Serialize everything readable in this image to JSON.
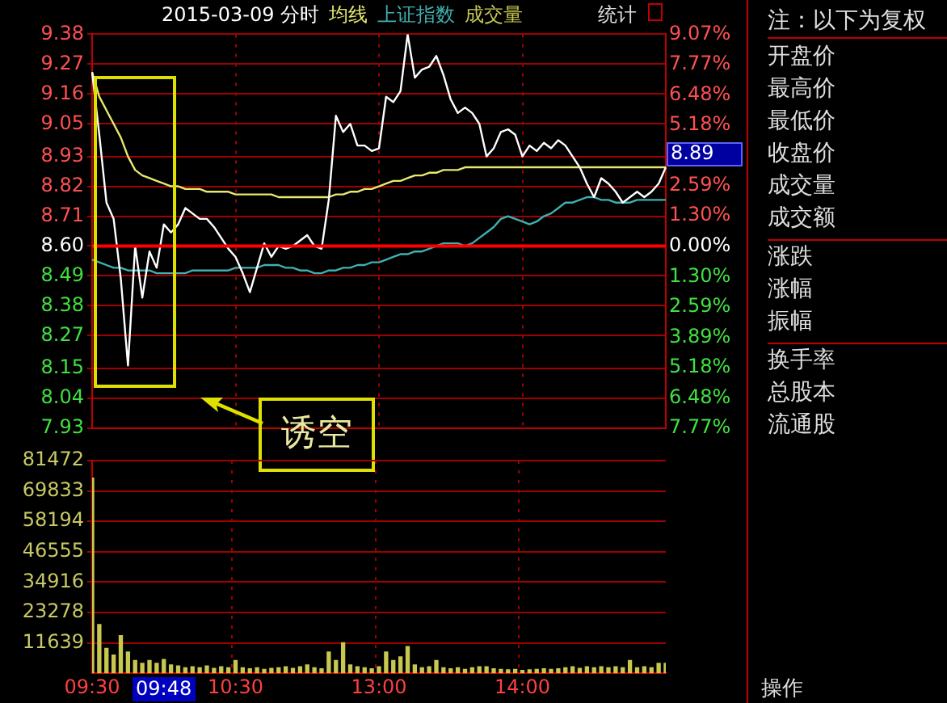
{
  "chart_data": [
    {
      "type": "line",
      "title": "2015-03-09 分时",
      "legend": "top left",
      "grid": true,
      "tick_labels": "y",
      "categories": [
        null,
        null,
        null,
        null,
        null,
        null,
        null,
        null,
        null,
        null,
        null,
        null,
        null,
        null,
        null,
        null,
        null,
        null,
        null,
        null,
        null,
        null,
        null,
        null,
        null,
        null,
        null,
        null,
        null,
        null,
        null,
        null,
        null,
        null,
        null,
        null,
        null,
        null,
        null,
        null,
        null,
        null,
        null,
        null,
        null,
        null,
        null,
        null,
        null,
        null,
        null,
        null,
        null,
        null,
        null,
        null,
        null,
        null,
        null,
        null,
        null,
        null,
        null,
        null,
        null,
        null,
        null,
        null,
        null,
        null,
        null,
        null,
        null,
        null,
        null,
        null,
        null,
        null,
        null,
        null,
        null
      ],
      "ylim": [
        7.93,
        9.38
      ],
      "yticks": [
        7.93,
        8.04,
        8.15,
        8.27,
        8.38,
        8.49,
        {
          "value": 8.6,
          "label": "8.60"
        },
        8.71,
        8.82,
        8.93,
        9.05,
        9.16,
        9.27,
        9.38
      ],
      "y2lim": [
        -7.77,
        9.07
      ],
      "y2ticks": [
        {
          "value": -7.77,
          "label": "7.77%"
        },
        {
          "value": -6.48,
          "label": "6.48%"
        },
        {
          "value": -5.18,
          "label": "5.18%"
        },
        {
          "value": -3.89,
          "label": "3.89%"
        },
        {
          "value": -2.59,
          "label": "2.59%"
        },
        {
          "value": -1.3,
          "label": "1.30%"
        },
        {
          "value": 0,
          "label": "0.00%"
        },
        {
          "value": 1.3,
          "label": "1.30%"
        },
        {
          "value": 2.59,
          "label": "2.59%"
        },
        {
          "value": 3.89,
          "label": null
        },
        {
          "value": 5.18,
          "label": "5.18%"
        },
        {
          "value": 6.48,
          "label": "6.48%"
        },
        {
          "value": 7.77,
          "label": "7.77%"
        },
        {
          "value": 9.07,
          "label": "9.07%"
        }
      ],
      "ref_lines": [
        {
          "axis": "y",
          "value": 8.6,
          "color": "#ff0000"
        }
      ],
      "annotations": [
        "统计",
        "诱空",
        "8.89"
      ],
      "series": [
        {
          "color": "#ffffff",
          "values": [
            9.24,
            9.01,
            8.76,
            8.7,
            8.48,
            8.16,
            8.6,
            8.41,
            8.58,
            8.52,
            8.68,
            8.65,
            8.68,
            8.74,
            8.72,
            8.7,
            8.7,
            8.67,
            8.63,
            8.59,
            8.56,
            8.5,
            8.43,
            8.52,
            8.61,
            8.56,
            8.6,
            8.59,
            8.6,
            8.62,
            8.64,
            8.6,
            8.59,
            8.77,
            9.08,
            9.02,
            9.05,
            8.97,
            8.97,
            8.95,
            8.96,
            9.15,
            9.13,
            9.17,
            9.38,
            9.22,
            9.25,
            9.26,
            9.3,
            9.23,
            9.14,
            9.09,
            9.11,
            9.09,
            9.05,
            8.93,
            8.96,
            9.02,
            9.03,
            9.01,
            8.93,
            8.97,
            8.95,
            8.98,
            8.96,
            8.99,
            8.97,
            8.93,
            8.89,
            8.83,
            8.78,
            8.85,
            8.83,
            8.8,
            8.76,
            8.78,
            8.8,
            8.78,
            8.8,
            8.83,
            8.89
          ]
        },
        {
          "name": "均线",
          "color": "#e8e870",
          "values": [
            9.24,
            9.15,
            9.1,
            9.05,
            9.0,
            8.93,
            8.88,
            8.86,
            8.85,
            8.84,
            8.83,
            8.82,
            8.82,
            8.81,
            8.81,
            8.81,
            8.8,
            8.8,
            8.8,
            8.8,
            8.79,
            8.79,
            8.79,
            8.79,
            8.79,
            8.79,
            8.78,
            8.78,
            8.78,
            8.78,
            8.78,
            8.78,
            8.78,
            8.78,
            8.79,
            8.79,
            8.8,
            8.8,
            8.81,
            8.81,
            8.82,
            8.83,
            8.84,
            8.84,
            8.85,
            8.86,
            8.86,
            8.87,
            8.87,
            8.88,
            8.88,
            8.88,
            8.89,
            8.89,
            8.89,
            8.89,
            8.89,
            8.89,
            8.89,
            8.89,
            8.89,
            8.89,
            8.89,
            8.89,
            8.89,
            8.89,
            8.89,
            8.89,
            8.89,
            8.89,
            8.89,
            8.89,
            8.89,
            8.89,
            8.89,
            8.89,
            8.89,
            8.89,
            8.89,
            8.89,
            8.89
          ]
        },
        {
          "name": "上证指数",
          "color": "#40b0b0",
          "values": [
            8.55,
            8.54,
            8.53,
            8.52,
            8.52,
            8.51,
            8.51,
            8.51,
            8.51,
            8.5,
            8.5,
            8.5,
            8.5,
            8.5,
            8.51,
            8.51,
            8.51,
            8.51,
            8.51,
            8.51,
            8.52,
            8.52,
            8.52,
            8.52,
            8.53,
            8.53,
            8.53,
            8.52,
            8.52,
            8.51,
            8.51,
            8.5,
            8.5,
            8.51,
            8.51,
            8.52,
            8.52,
            8.53,
            8.53,
            8.54,
            8.54,
            8.55,
            8.56,
            8.57,
            8.57,
            8.58,
            8.58,
            8.59,
            8.6,
            8.61,
            8.61,
            8.61,
            8.6,
            8.61,
            8.63,
            8.65,
            8.67,
            8.7,
            8.71,
            8.7,
            8.69,
            8.68,
            8.69,
            8.71,
            8.72,
            8.74,
            8.76,
            8.76,
            8.77,
            8.78,
            8.78,
            8.77,
            8.77,
            8.76,
            8.76,
            8.76,
            8.77,
            8.77,
            8.77,
            8.77,
            8.77
          ]
        }
      ]
    },
    {
      "type": "bar",
      "legend": "top",
      "grid": true,
      "categories": [
        "09:30",
        null,
        null,
        null,
        null,
        null,
        null,
        null,
        null,
        null,
        null,
        null,
        null,
        null,
        null,
        null,
        null,
        null,
        null,
        null,
        "10:30",
        null,
        null,
        null,
        null,
        null,
        null,
        null,
        null,
        null,
        null,
        null,
        null,
        null,
        null,
        null,
        null,
        null,
        null,
        null,
        "13:00",
        null,
        null,
        null,
        null,
        null,
        null,
        null,
        null,
        null,
        null,
        null,
        null,
        null,
        null,
        null,
        null,
        null,
        null,
        null,
        "14:00",
        null,
        null,
        null,
        null,
        null,
        null,
        null,
        null,
        null,
        null,
        null,
        null,
        null,
        null,
        null,
        null,
        null,
        null,
        null,
        null
      ],
      "ylim": [
        0,
        81472
      ],
      "yticks": [
        11639,
        23278,
        34916,
        46555,
        58194,
        69833,
        81472
      ],
      "annotations": [
        "09:48"
      ],
      "series": [
        {
          "name": "成交量",
          "color": "#c8c850",
          "values": [
            74800,
            18700,
            9500,
            7000,
            14400,
            8100,
            4900,
            3800,
            4900,
            3800,
            5300,
            3200,
            2800,
            2100,
            2500,
            2100,
            2800,
            1900,
            2500,
            2100,
            4900,
            2100,
            1700,
            2100,
            1500,
            1900,
            2100,
            2500,
            1900,
            2500,
            3200,
            2100,
            1700,
            8100,
            4900,
            11700,
            3200,
            2500,
            2100,
            1700,
            2500,
            8100,
            4900,
            6300,
            10200,
            3200,
            2100,
            2500,
            4900,
            2100,
            1700,
            2100,
            1500,
            2100,
            2500,
            2500,
            1700,
            1500,
            1300,
            1500,
            1100,
            1300,
            1500,
            1700,
            1500,
            1700,
            2100,
            2500,
            1900,
            2500,
            2100,
            2500,
            2100,
            2500,
            2100,
            4900,
            2100,
            2500,
            2100,
            3800,
            3800
          ]
        }
      ]
    },
    {
      "type": "other",
      "title": "注：以下为复权",
      "annotations": [
        "开盘价",
        "最高价",
        "最低价",
        "收盘价",
        "成交量",
        "成交额",
        "涨跌",
        "涨幅",
        "振幅",
        "换手率",
        "总股本",
        "流通股",
        "操作"
      ]
    }
  ]
}
